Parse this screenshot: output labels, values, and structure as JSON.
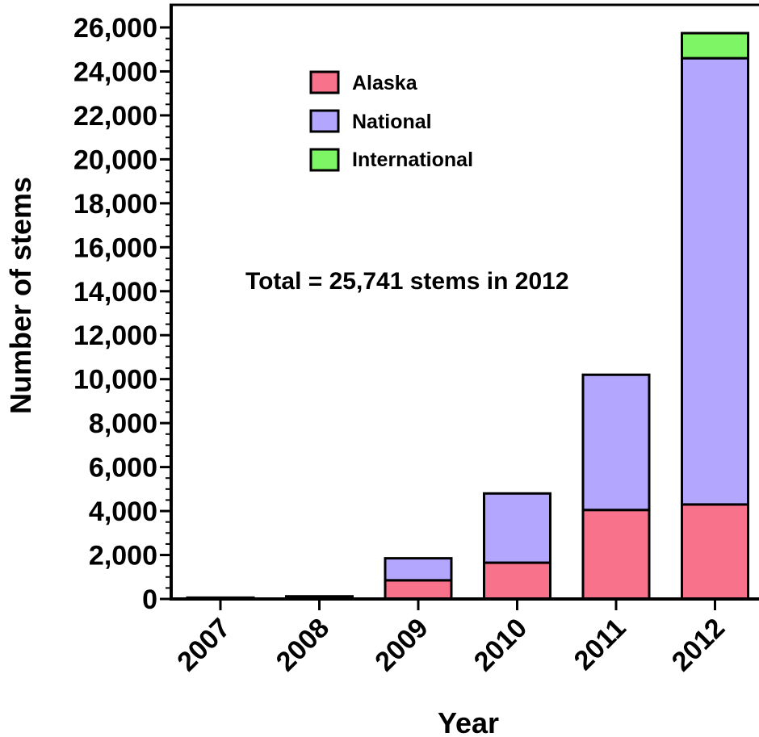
{
  "chart_data": {
    "type": "bar",
    "stacked": true,
    "categories": [
      "2007",
      "2008",
      "2009",
      "2010",
      "2011",
      "2012"
    ],
    "series": [
      {
        "name": "Alaska",
        "values": [
          60,
          120,
          850,
          1650,
          4050,
          4300
        ],
        "color": "#f7728a"
      },
      {
        "name": "National",
        "values": [
          0,
          0,
          1000,
          3150,
          6150,
          20300
        ],
        "color": "#b3a6ff"
      },
      {
        "name": "International",
        "values": [
          0,
          0,
          0,
          0,
          0,
          1141
        ],
        "color": "#7ef564"
      }
    ],
    "xlabel": "Year",
    "ylabel": "Number of stems",
    "ylim": [
      0,
      26000
    ],
    "yticks": [
      "0",
      "2,000",
      "4,000",
      "6,000",
      "8,000",
      "10,000",
      "12,000",
      "14,000",
      "16,000",
      "18,000",
      "20,000",
      "22,000",
      "24,000",
      "26,000"
    ],
    "annotation": "Total = 25,741 stems in 2012",
    "legend_position": "top-left",
    "grid": false
  }
}
